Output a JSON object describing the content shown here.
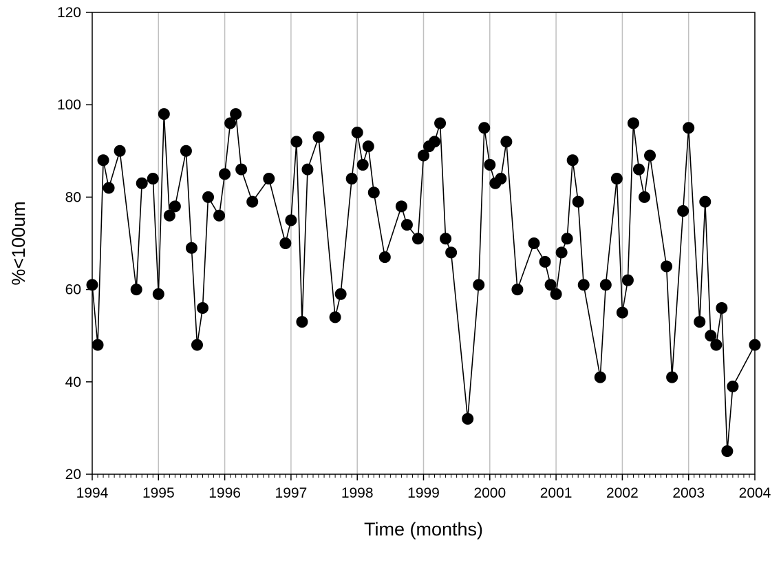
{
  "chart_data": {
    "type": "scatter",
    "title": "",
    "xlabel": "Time (months)",
    "ylabel": "%<100um",
    "xlim": [
      1994,
      2004
    ],
    "ylim": [
      20,
      120
    ],
    "x_ticks": [
      "1994",
      "1995",
      "1996",
      "1997",
      "1998",
      "1999",
      "2000",
      "2001",
      "2002",
      "2003",
      "2004"
    ],
    "y_ticks": [
      "20",
      "40",
      "60",
      "80",
      "100",
      "120"
    ],
    "x_minor_ticks_per_year": 12,
    "vertical_gridlines": true,
    "horizontal_gridlines": false,
    "legend": "none",
    "marker": "filled circle",
    "connected_line": true,
    "series_color": "#000000",
    "gridline_color": "#c0c0c0",
    "series": [
      {
        "x": [
          "1994-01",
          "1994-02",
          "1994-03",
          "1994-04",
          "1994-06",
          "1994-09",
          "1994-10",
          "1994-12",
          "1995-01",
          "1995-02",
          "1995-03",
          "1995-04",
          "1995-06",
          "1995-07",
          "1995-08",
          "1995-09",
          "1995-10",
          "1995-12",
          "1996-01",
          "1996-02",
          "1996-03",
          "1996-04",
          "1996-06",
          "1996-09",
          "1996-12",
          "1997-01",
          "1997-02",
          "1997-03",
          "1997-04",
          "1997-06",
          "1997-09",
          "1997-10",
          "1997-12",
          "1998-01",
          "1998-02",
          "1998-03",
          "1998-04",
          "1998-06",
          "1998-09",
          "1998-10",
          "1998-12",
          "1999-01",
          "1999-02",
          "1999-03",
          "1999-04",
          "1999-05",
          "1999-06",
          "1999-09",
          "1999-11",
          "1999-12",
          "2000-01",
          "2000-02",
          "2000-03",
          "2000-04",
          "2000-06",
          "2000-09",
          "2000-11",
          "2000-12",
          "2001-01",
          "2001-02",
          "2001-03",
          "2001-04",
          "2001-05",
          "2001-06",
          "2001-09",
          "2001-10",
          "2001-12",
          "2002-01",
          "2002-02",
          "2002-03",
          "2002-04",
          "2002-05",
          "2002-06",
          "2002-09",
          "2002-10",
          "2002-12",
          "2003-01",
          "2003-03",
          "2003-04",
          "2003-05",
          "2003-06",
          "2003-07",
          "2003-08",
          "2003-09",
          "2004-01"
        ],
        "values": [
          61,
          48,
          88,
          82,
          90,
          60,
          83,
          84,
          59,
          98,
          76,
          78,
          90,
          69,
          48,
          56,
          80,
          76,
          85,
          96,
          98,
          86,
          79,
          84,
          70,
          75,
          92,
          53,
          86,
          93,
          54,
          59,
          84,
          94,
          87,
          91,
          81,
          67,
          78,
          74,
          71,
          89,
          91,
          92,
          96,
          71,
          68,
          32,
          61,
          95,
          87,
          83,
          84,
          92,
          60,
          70,
          66,
          61,
          59,
          68,
          71,
          88,
          79,
          61,
          41,
          61,
          84,
          55,
          62,
          96,
          86,
          80,
          89,
          65,
          41,
          77,
          95,
          53,
          79,
          50,
          48,
          56,
          25,
          39,
          48
        ]
      }
    ]
  }
}
